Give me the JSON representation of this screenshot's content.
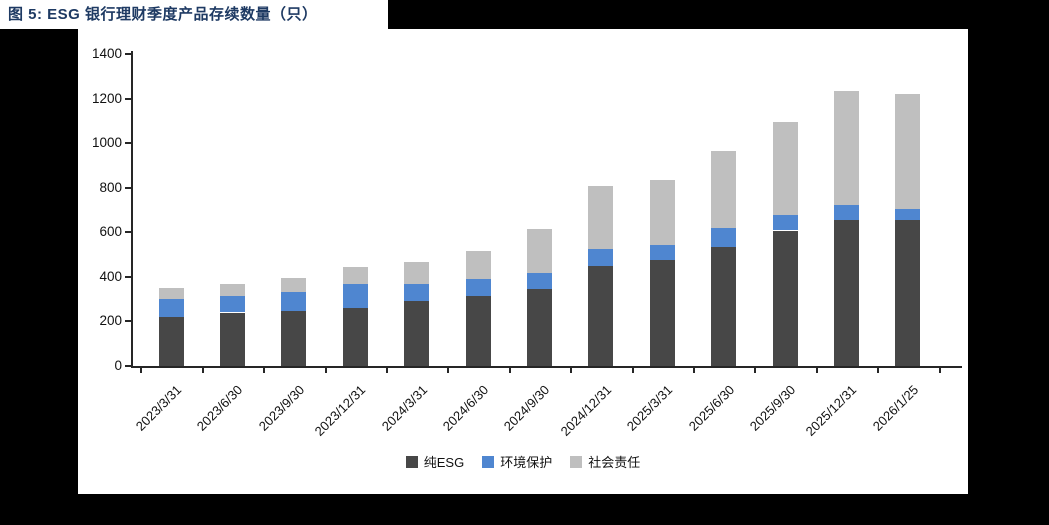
{
  "figure": {
    "title_color": "#1e3a63"
  },
  "chart_data": {
    "type": "bar",
    "stacked": true,
    "title": "图 5: ESG 银行理财季度产品存续数量（只）",
    "categories": [
      "2023/3/31",
      "2023/6/30",
      "2023/9/30",
      "2023/12/31",
      "2024/3/31",
      "2024/6/30",
      "2024/9/30",
      "2024/12/31",
      "2025/3/31",
      "2025/6/30",
      "2025/9/30",
      "2025/12/31",
      "2026/1/25"
    ],
    "series": [
      {
        "name": "纯ESG",
        "color": "#474747",
        "values": [
          220,
          240,
          245,
          260,
          292,
          315,
          345,
          450,
          476,
          533,
          608,
          656,
          654
        ]
      },
      {
        "name": "环境保护",
        "color": "#4f86d0",
        "values": [
          80,
          72,
          85,
          110,
          76,
          75,
          71,
          75,
          69,
          87,
          70,
          68,
          51
        ]
      },
      {
        "name": "社会责任",
        "color": "#bfbfbf",
        "values": [
          50,
          58,
          65,
          75,
          97,
          128,
          199,
          283,
          288,
          343,
          418,
          512,
          517
        ]
      }
    ],
    "totals": [
      350,
      370,
      395,
      445,
      465,
      518,
      615,
      808,
      833,
      963,
      1096,
      1236,
      1222
    ],
    "xlabel": "",
    "ylabel": "",
    "ylim": [
      0,
      1400
    ],
    "ytick_step": 200,
    "yticks": [
      "0",
      "200",
      "400",
      "600",
      "800",
      "1000",
      "1200",
      "1400"
    ],
    "grid": false,
    "legend_position": "bottom"
  }
}
